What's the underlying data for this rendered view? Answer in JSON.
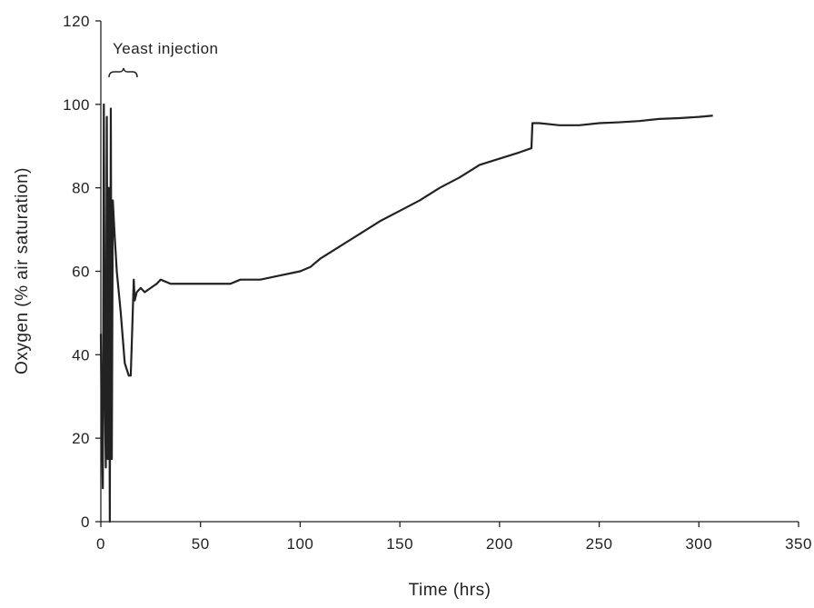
{
  "chart_data": {
    "type": "line",
    "x_label": "Time (hrs)",
    "y_label": "Oxygen (% air saturation)",
    "annotation": "Yeast injection",
    "xlim": [
      0,
      350
    ],
    "xticks": [
      0,
      50,
      100,
      150,
      200,
      250,
      300,
      350
    ],
    "ylim": [
      0,
      120
    ],
    "yticks": [
      0,
      20,
      40,
      60,
      80,
      100,
      120
    ],
    "grid": false,
    "series": [
      {
        "color": "#222222",
        "x": [
          0,
          0.5,
          1,
          1.5,
          2,
          2.5,
          3,
          3.5,
          4,
          4.5,
          5,
          5.5,
          6,
          7,
          8,
          10,
          12,
          14,
          15,
          16,
          16.5,
          17,
          18,
          20,
          22,
          25,
          28,
          30,
          35,
          38,
          40,
          45,
          50,
          55,
          60,
          65,
          70,
          80,
          90,
          100,
          105,
          110,
          120,
          130,
          140,
          150,
          160,
          170,
          180,
          190,
          200,
          210,
          216,
          216.5,
          220,
          230,
          240,
          250,
          260,
          270,
          280,
          290,
          300,
          307
        ],
        "values": [
          45,
          20,
          8,
          100,
          30,
          13,
          97,
          15,
          80,
          0,
          99,
          15,
          77,
          68,
          60,
          50,
          38,
          35,
          35,
          50,
          58,
          53,
          55,
          56,
          55,
          56,
          57,
          58,
          57,
          57,
          57,
          57,
          57,
          57,
          57,
          57,
          58,
          58,
          59,
          60,
          61,
          63,
          66,
          69,
          72,
          74.5,
          77,
          80,
          82.5,
          85.5,
          87,
          88.5,
          89.5,
          95.5,
          95.5,
          95,
          95,
          95.5,
          95.7,
          96,
          96.5,
          96.7,
          97,
          97.3
        ]
      }
    ]
  }
}
